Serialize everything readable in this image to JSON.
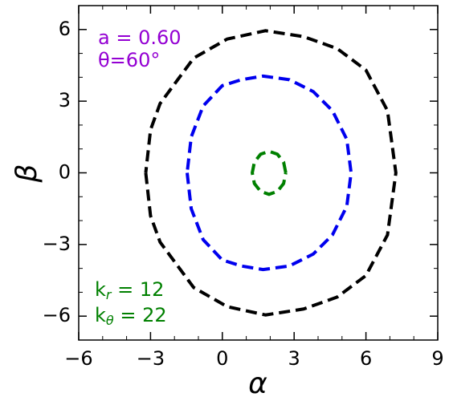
{
  "chart_data": {
    "type": "line",
    "xlabel": "α",
    "ylabel": "β",
    "xlim": [
      -6,
      9
    ],
    "ylim": [
      -7,
      7
    ],
    "xticks": [
      {
        "value": -6,
        "label": "−6"
      },
      {
        "value": -3,
        "label": "−3"
      },
      0,
      3,
      6,
      9
    ],
    "yticks": [
      {
        "value": -6,
        "label": "−6"
      },
      {
        "value": -3,
        "label": "−3"
      },
      0,
      3,
      6
    ],
    "xminorticks": [
      -5,
      -4,
      -2,
      -1,
      1,
      2,
      4,
      5,
      7,
      8
    ],
    "yminorticks": [
      -7,
      -5,
      -4,
      -2,
      -1,
      1,
      2,
      4,
      5,
      7
    ],
    "series": [
      {
        "color": "#000000",
        "x": [
          -3.2,
          -3.0,
          -2.6,
          -1.2,
          0.2,
          1.8,
          3.4,
          4.8,
          6.0,
          6.9,
          7.25,
          6.9,
          6.0,
          4.8,
          3.4,
          1.8,
          0.2,
          -1.2,
          -2.6,
          -3.0,
          -3.2
        ],
        "values": [
          0,
          -1.8,
          -2.9,
          -4.8,
          -5.6,
          -5.95,
          -5.7,
          -5.2,
          -4.3,
          -2.6,
          0,
          2.6,
          4.3,
          5.2,
          5.7,
          5.95,
          5.6,
          4.8,
          2.9,
          1.8,
          0
        ]
      },
      {
        "color": "#0000ee",
        "x": [
          -1.47,
          -1.3,
          -0.8,
          0,
          0.8,
          1.7,
          2.8,
          3.8,
          4.6,
          5.2,
          5.38,
          5.2,
          4.6,
          3.8,
          2.8,
          1.7,
          0.8,
          0,
          -0.8,
          -1.3,
          -1.47
        ],
        "values": [
          0,
          -1.5,
          -2.8,
          -3.65,
          -3.9,
          -4.05,
          -3.9,
          -3.4,
          -2.6,
          -1.4,
          0,
          1.4,
          2.6,
          3.4,
          3.9,
          4.05,
          3.9,
          3.65,
          2.8,
          1.5,
          0
        ]
      },
      {
        "color": "#008000",
        "x": [
          2.65,
          2.56,
          2.3,
          1.95,
          1.6,
          1.34,
          1.25,
          1.34,
          1.6,
          1.95,
          2.3,
          2.56,
          2.65
        ],
        "values": [
          0,
          0.45,
          0.78,
          0.9,
          0.78,
          0.45,
          0,
          -0.45,
          -0.78,
          -0.9,
          -0.78,
          -0.45,
          0
        ]
      }
    ],
    "annotations": [
      {
        "text": "a = 0.60",
        "color": "#9400d3"
      },
      {
        "text": "θ=60°",
        "color": "#9400d3"
      },
      {
        "base": "k",
        "sub": "r",
        "text": " = 12",
        "color": "#008000"
      },
      {
        "base": "k",
        "sub": "θ",
        "text": " = 22",
        "color": "#008000"
      }
    ]
  }
}
